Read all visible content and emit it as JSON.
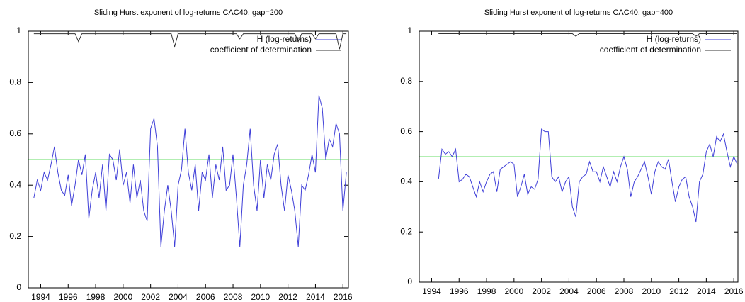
{
  "chart_data": [
    {
      "type": "line",
      "title": "Sliding Hurst exponent of log-returns CAC40, gap=200",
      "x": [
        1993.5,
        1993.75,
        1994,
        1994.25,
        1994.5,
        1994.75,
        1995,
        1995.25,
        1995.5,
        1995.75,
        1996,
        1996.25,
        1996.5,
        1996.75,
        1997,
        1997.25,
        1997.5,
        1997.75,
        1998,
        1998.25,
        1998.5,
        1998.75,
        1999,
        1999.25,
        1999.5,
        1999.75,
        2000,
        2000.25,
        2000.5,
        2000.75,
        2001,
        2001.25,
        2001.5,
        2001.75,
        2002,
        2002.25,
        2002.5,
        2002.75,
        2003,
        2003.25,
        2003.5,
        2003.75,
        2004,
        2004.25,
        2004.5,
        2004.75,
        2005,
        2005.25,
        2005.5,
        2005.75,
        2006,
        2006.25,
        2006.5,
        2006.75,
        2007,
        2007.25,
        2007.5,
        2007.75,
        2008,
        2008.25,
        2008.5,
        2008.75,
        2009,
        2009.25,
        2009.5,
        2009.75,
        2010,
        2010.25,
        2010.5,
        2010.75,
        2011,
        2011.25,
        2011.5,
        2011.75,
        2012,
        2012.25,
        2012.5,
        2012.75,
        2013,
        2013.25,
        2013.5,
        2013.75,
        2014,
        2014.25,
        2014.5,
        2014.75,
        2015,
        2015.25,
        2015.5,
        2015.75,
        2016,
        2016.25
      ],
      "series": [
        {
          "name": "H (log-returns)",
          "color": "#3f3fd8",
          "values": [
            0.35,
            0.42,
            0.38,
            0.45,
            0.42,
            0.48,
            0.55,
            0.45,
            0.38,
            0.36,
            0.44,
            0.32,
            0.4,
            0.5,
            0.44,
            0.52,
            0.27,
            0.38,
            0.45,
            0.35,
            0.48,
            0.3,
            0.52,
            0.5,
            0.42,
            0.54,
            0.4,
            0.45,
            0.33,
            0.48,
            0.35,
            0.42,
            0.3,
            0.26,
            0.62,
            0.66,
            0.55,
            0.16,
            0.3,
            0.4,
            0.3,
            0.16,
            0.4,
            0.46,
            0.62,
            0.45,
            0.38,
            0.48,
            0.3,
            0.45,
            0.42,
            0.52,
            0.35,
            0.48,
            0.42,
            0.55,
            0.38,
            0.4,
            0.52,
            0.35,
            0.16,
            0.4,
            0.48,
            0.62,
            0.4,
            0.3,
            0.5,
            0.35,
            0.48,
            0.42,
            0.52,
            0.56,
            0.4,
            0.3,
            0.44,
            0.38,
            0.3,
            0.16,
            0.4,
            0.38,
            0.44,
            0.52,
            0.45,
            0.75,
            0.7,
            0.5,
            0.58,
            0.55,
            0.64,
            0.6,
            0.3,
            0.45
          ]
        },
        {
          "name": "coefficient of determination",
          "color": "#333333",
          "values": [
            0.99,
            0.99,
            0.99,
            0.99,
            0.99,
            0.99,
            0.99,
            0.99,
            0.99,
            0.99,
            0.99,
            0.99,
            0.99,
            0.96,
            0.99,
            0.99,
            0.99,
            0.99,
            0.99,
            0.99,
            0.99,
            0.99,
            0.99,
            0.99,
            0.99,
            0.99,
            0.99,
            0.99,
            0.99,
            0.99,
            0.99,
            0.99,
            0.99,
            0.99,
            0.99,
            0.99,
            0.99,
            0.99,
            0.99,
            0.99,
            0.99,
            0.94,
            0.99,
            0.99,
            0.99,
            0.99,
            0.99,
            0.99,
            0.99,
            0.99,
            0.99,
            0.99,
            0.99,
            0.99,
            0.99,
            0.99,
            0.99,
            0.99,
            0.99,
            0.99,
            0.97,
            0.99,
            0.99,
            0.99,
            0.99,
            0.99,
            0.99,
            0.99,
            0.99,
            0.99,
            0.99,
            0.99,
            0.99,
            0.99,
            0.99,
            0.99,
            0.99,
            0.96,
            0.99,
            0.99,
            0.99,
            0.99,
            0.97,
            0.99,
            0.99,
            0.99,
            0.99,
            0.99,
            0.99,
            0.93,
            0.99,
            0.99
          ]
        }
      ],
      "hline": 0.5,
      "hline_color": "#66dd66",
      "xlim": [
        1993.1,
        2016.4
      ],
      "xticks": [
        1994,
        1996,
        1998,
        2000,
        2002,
        2004,
        2006,
        2008,
        2010,
        2012,
        2014,
        2016
      ],
      "ylim": [
        0,
        1
      ],
      "yticks": [
        0,
        0.2,
        0.4,
        0.6,
        0.8,
        1
      ],
      "legend": "top right"
    },
    {
      "type": "line",
      "title": "Sliding Hurst exponent of log-returns CAC40, gap=400",
      "x": [
        1994.5,
        1994.75,
        1995,
        1995.25,
        1995.5,
        1995.75,
        1996,
        1996.25,
        1996.5,
        1996.75,
        1997,
        1997.25,
        1997.5,
        1997.75,
        1998,
        1998.25,
        1998.5,
        1998.75,
        1999,
        1999.25,
        1999.5,
        1999.75,
        2000,
        2000.25,
        2000.5,
        2000.75,
        2001,
        2001.25,
        2001.5,
        2001.75,
        2002,
        2002.25,
        2002.5,
        2002.75,
        2003,
        2003.25,
        2003.5,
        2003.75,
        2004,
        2004.25,
        2004.5,
        2004.75,
        2005,
        2005.25,
        2005.5,
        2005.75,
        2006,
        2006.25,
        2006.5,
        2006.75,
        2007,
        2007.25,
        2007.5,
        2007.75,
        2008,
        2008.25,
        2008.5,
        2008.75,
        2009,
        2009.25,
        2009.5,
        2009.75,
        2010,
        2010.25,
        2010.5,
        2010.75,
        2011,
        2011.25,
        2011.5,
        2011.75,
        2012,
        2012.25,
        2012.5,
        2012.75,
        2013,
        2013.25,
        2013.5,
        2013.75,
        2014,
        2014.25,
        2014.5,
        2014.75,
        2015,
        2015.25,
        2015.5,
        2015.75,
        2016,
        2016.25
      ],
      "series": [
        {
          "name": "H (log-returns)",
          "color": "#3f3fd8",
          "values": [
            0.41,
            0.53,
            0.51,
            0.52,
            0.5,
            0.53,
            0.4,
            0.41,
            0.43,
            0.42,
            0.38,
            0.34,
            0.4,
            0.36,
            0.4,
            0.43,
            0.44,
            0.36,
            0.45,
            0.46,
            0.47,
            0.48,
            0.47,
            0.34,
            0.38,
            0.43,
            0.35,
            0.38,
            0.37,
            0.41,
            0.61,
            0.6,
            0.6,
            0.42,
            0.4,
            0.42,
            0.36,
            0.4,
            0.42,
            0.3,
            0.26,
            0.4,
            0.42,
            0.43,
            0.48,
            0.44,
            0.44,
            0.4,
            0.46,
            0.42,
            0.38,
            0.44,
            0.4,
            0.46,
            0.5,
            0.45,
            0.34,
            0.4,
            0.42,
            0.45,
            0.48,
            0.42,
            0.35,
            0.44,
            0.48,
            0.46,
            0.45,
            0.49,
            0.4,
            0.32,
            0.38,
            0.41,
            0.42,
            0.34,
            0.3,
            0.24,
            0.4,
            0.43,
            0.52,
            0.55,
            0.5,
            0.58,
            0.56,
            0.59,
            0.52,
            0.46,
            0.5,
            0.47
          ]
        },
        {
          "name": "coefficient of determination",
          "color": "#333333",
          "values": [
            0.99,
            0.99,
            0.99,
            0.99,
            0.99,
            0.99,
            0.99,
            0.99,
            0.99,
            0.99,
            0.99,
            0.99,
            0.99,
            0.99,
            0.99,
            0.99,
            0.99,
            0.99,
            0.99,
            0.99,
            0.99,
            0.99,
            0.99,
            0.99,
            0.99,
            0.99,
            0.99,
            0.99,
            0.99,
            0.99,
            0.99,
            0.99,
            0.99,
            0.99,
            0.99,
            0.99,
            0.99,
            0.99,
            0.99,
            0.99,
            0.98,
            0.99,
            0.99,
            0.99,
            0.99,
            0.99,
            0.99,
            0.99,
            0.99,
            0.99,
            0.99,
            0.99,
            0.99,
            0.99,
            0.99,
            0.99,
            0.99,
            0.99,
            0.99,
            0.99,
            0.99,
            0.99,
            0.99,
            0.99,
            0.99,
            0.99,
            0.99,
            0.99,
            0.99,
            0.99,
            0.99,
            0.99,
            0.99,
            0.99,
            0.99,
            0.98,
            0.99,
            0.99,
            0.99,
            0.99,
            0.99,
            0.99,
            0.99,
            0.99,
            0.99,
            0.99,
            0.99,
            0.99
          ]
        }
      ],
      "hline": 0.5,
      "hline_color": "#66dd66",
      "xlim": [
        1993.1,
        2016.3
      ],
      "xticks": [
        1994,
        1996,
        1998,
        2000,
        2002,
        2004,
        2006,
        2008,
        2010,
        2012,
        2014,
        2016
      ],
      "ylim": [
        0,
        1
      ],
      "yticks": [
        0,
        0.2,
        0.4,
        0.6,
        0.8,
        1
      ],
      "legend": "top right"
    }
  ]
}
